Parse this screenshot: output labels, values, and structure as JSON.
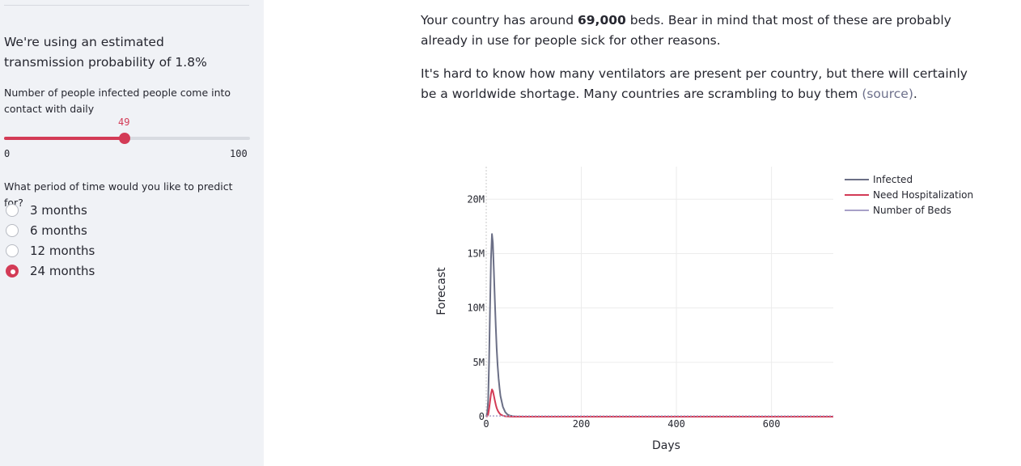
{
  "sidebar": {
    "transmission_text": "We're using an estimated transmission probability of 1.8%",
    "slider": {
      "label": "Number of people infected people come into contact with daily",
      "value": 49,
      "value_label": "49",
      "min": 0,
      "max": 100,
      "min_label": "0",
      "max_label": "100"
    },
    "period_question": "What period of time would you like to predict for?",
    "period_options": [
      {
        "label": "3 months",
        "selected": false
      },
      {
        "label": "6 months",
        "selected": false
      },
      {
        "label": "12 months",
        "selected": false
      },
      {
        "label": "24 months",
        "selected": true
      }
    ]
  },
  "main": {
    "beds_text_before": "Your country has around ",
    "beds_count": "69,000",
    "beds_text_after": " beds. Bear in mind that most of these are probably already in use for people sick for other reasons.",
    "ventilator_text": "It's hard to know how many ventilators are present per country, but there will certainly be a worldwide shortage. Many countries are scrambling to buy them ",
    "source_link": "(source)",
    "ventilator_end": "."
  },
  "colors": {
    "accent": "#d33b56",
    "infected": "#6b6f86",
    "hospital": "#d33b56",
    "beds": "#a8a0c8"
  },
  "chart_data": {
    "type": "line",
    "xlabel": "Days",
    "ylabel": "Forecast",
    "xlim": [
      0,
      730
    ],
    "ylim": [
      0,
      23000000
    ],
    "x_ticks": [
      0,
      200,
      400,
      600
    ],
    "x_tick_labels": [
      "0",
      "200",
      "400",
      "600"
    ],
    "y_ticks": [
      0,
      5000000,
      10000000,
      15000000,
      20000000
    ],
    "y_tick_labels": [
      "0",
      "5M",
      "10M",
      "15M",
      "20M"
    ],
    "legend_position": "top-right",
    "series": [
      {
        "name": "Infected",
        "x": [
          0,
          2,
          4,
          6,
          8,
          10,
          12,
          14,
          16,
          18,
          20,
          22,
          24,
          26,
          28,
          30,
          35,
          40,
          45,
          50,
          60,
          70,
          80,
          100,
          200,
          400,
          600,
          730
        ],
        "values": [
          0,
          300000,
          1500000,
          5000000,
          10000000,
          14500000,
          16800000,
          16000000,
          13500000,
          10800000,
          8300000,
          6300000,
          4700000,
          3500000,
          2600000,
          1900000,
          900000,
          420000,
          190000,
          90000,
          20000,
          5000,
          1000,
          0,
          0,
          0,
          0,
          0
        ]
      },
      {
        "name": "Need Hospitalization",
        "x": [
          0,
          2,
          4,
          6,
          8,
          10,
          12,
          14,
          16,
          18,
          20,
          22,
          24,
          26,
          28,
          30,
          35,
          40,
          50,
          60,
          100,
          200,
          400,
          600,
          730
        ],
        "values": [
          0,
          40000,
          200000,
          700000,
          1400000,
          2100000,
          2500000,
          2350000,
          1950000,
          1500000,
          1100000,
          800000,
          580000,
          420000,
          300000,
          210000,
          90000,
          40000,
          8000,
          2000,
          0,
          0,
          0,
          0,
          0
        ]
      },
      {
        "name": "Number of Beds",
        "x": [
          0,
          730
        ],
        "values": [
          69000,
          69000
        ]
      }
    ]
  }
}
